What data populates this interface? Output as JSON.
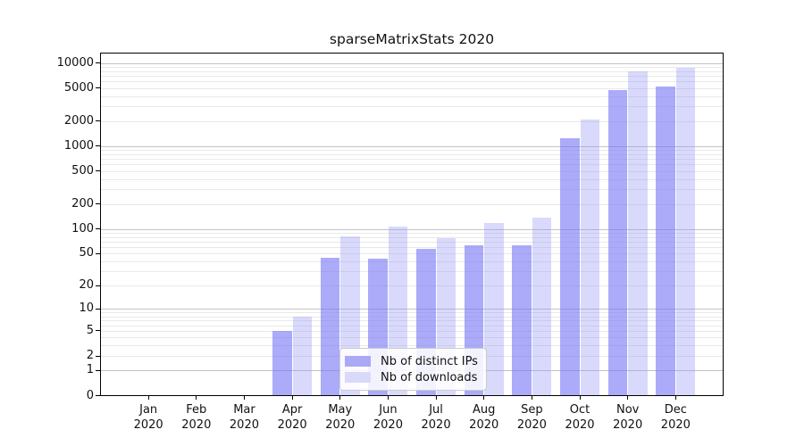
{
  "chart_data": {
    "type": "bar",
    "title": "sparseMatrixStats 2020",
    "categories": [
      "Jan 2020",
      "Feb 2020",
      "Mar 2020",
      "Apr 2020",
      "May 2020",
      "Jun 2020",
      "Jul 2020",
      "Aug 2020",
      "Sep 2020",
      "Oct 2020",
      "Nov 2020",
      "Dec 2020"
    ],
    "x_tick_month_line": [
      "Jan",
      "Feb",
      "Mar",
      "Apr",
      "May",
      "Jun",
      "Jul",
      "Aug",
      "Sep",
      "Oct",
      "Nov",
      "Dec"
    ],
    "x_tick_year_line": "2020",
    "series": [
      {
        "name": "Nb of distinct IPs",
        "bar_fill": "rgba(120,120,245,0.62)",
        "legend_color": "#a9a9f6",
        "values": [
          0,
          0,
          0,
          5,
          44,
          43,
          57,
          63,
          63,
          1255,
          4760,
          5200
        ]
      },
      {
        "name": "Nb of downloads",
        "bar_fill": "rgba(145,145,245,0.35)",
        "legend_color": "#d9d9fa",
        "values": [
          0,
          0,
          0,
          8,
          82,
          107,
          78,
          118,
          136,
          2100,
          8000,
          8700
        ]
      }
    ],
    "xlabel": "",
    "ylabel": "",
    "yscale": "log1p",
    "ylim": [
      0,
      13000
    ],
    "y_ticks": [
      0,
      1,
      2,
      5,
      10,
      20,
      50,
      100,
      200,
      500,
      1000,
      2000,
      5000,
      10000
    ],
    "grid": "major decade lines darker, minor 2-9 per decade lighter",
    "legend_position": "lower-center"
  },
  "colors": {
    "axis": "#000000",
    "major_grid": "#c3c3c3",
    "minor_grid": "#e9e9e9",
    "background": "#ffffff"
  }
}
